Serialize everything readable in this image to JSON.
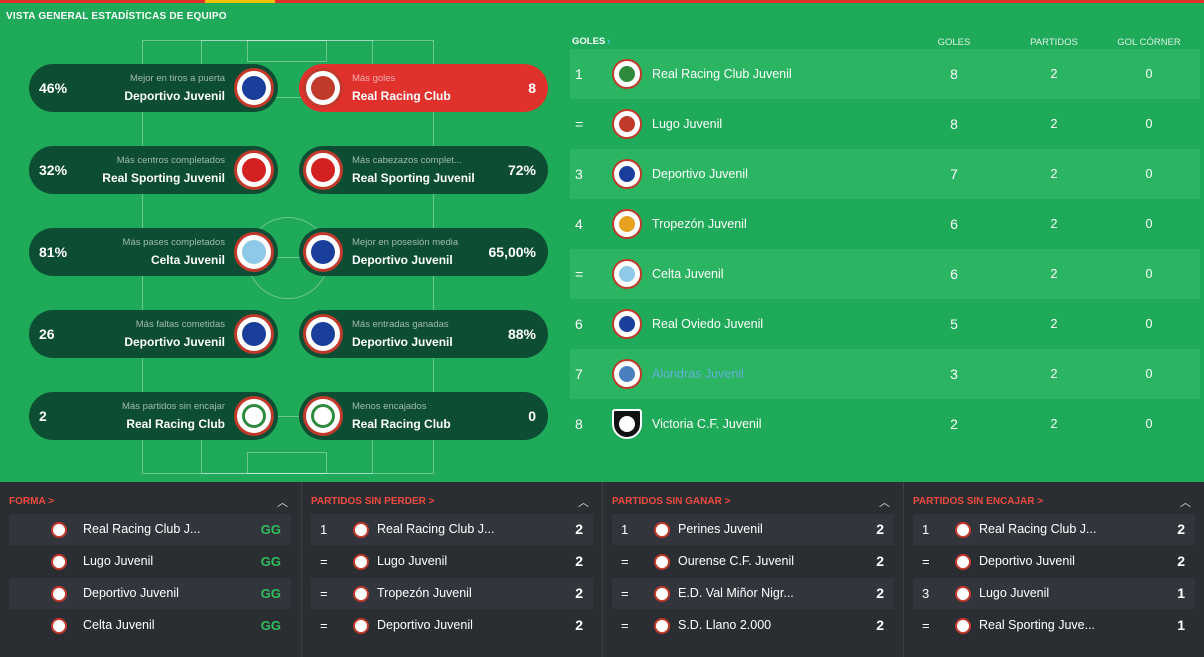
{
  "page": {
    "title": "VISTA GENERAL ESTADÍSTICAS DE EQUIPO"
  },
  "colors": {
    "green": "#1faa59",
    "dark_pill": "#0d4d33",
    "red": "#e0312d",
    "panel_bg": "#2a2e33",
    "form_green": "#2fbf5b"
  },
  "stats": {
    "left": [
      {
        "value": "46%",
        "label": "Mejor en tiros a puerta",
        "team": "Deportivo Juvenil",
        "crest": "#1a3e9b"
      },
      {
        "value": "32%",
        "label": "Más centros completados",
        "team": "Real Sporting Juvenil",
        "crest": "#d32020"
      },
      {
        "value": "81%",
        "label": "Más pases completados",
        "team": "Celta Juvenil",
        "crest": "#8fc9e8"
      },
      {
        "value": "26",
        "label": "Más faltas cometidas",
        "team": "Deportivo Juvenil",
        "crest": "#1a3e9b"
      },
      {
        "value": "2",
        "label": "Más partidos sin encajar",
        "team": "Real Racing Club",
        "crest": "#ffffff"
      }
    ],
    "right": [
      {
        "value": "8",
        "label": "Más goles",
        "team": "Real Racing Club",
        "crest": "#c0392b",
        "highlight": true
      },
      {
        "value": "72%",
        "label": "Más cabezazos complet...",
        "team": "Real Sporting Juvenil",
        "crest": "#d32020"
      },
      {
        "value": "65,00%",
        "label": "Mejor en posesión media",
        "team": "Deportivo Juvenil",
        "crest": "#1a3e9b"
      },
      {
        "value": "88%",
        "label": "Más entradas ganadas",
        "team": "Deportivo Juvenil",
        "crest": "#1a3e9b"
      },
      {
        "value": "0",
        "label": "Menos encajados",
        "team": "Real Racing Club",
        "crest": "#ffffff"
      }
    ]
  },
  "goals_table": {
    "title": "GOLES",
    "columns": {
      "goals": "GOLES",
      "played": "PARTIDOS",
      "corner": "GOL CÓRNER"
    },
    "rows": [
      {
        "pos": "1",
        "team": "Real Racing Club Juvenil",
        "goals": "8",
        "played": "2",
        "corner": "0",
        "crest": "#2e8b3d"
      },
      {
        "pos": "=",
        "team": "Lugo Juvenil",
        "goals": "8",
        "played": "2",
        "corner": "0",
        "crest": "#c0392b"
      },
      {
        "pos": "3",
        "team": "Deportivo Juvenil",
        "goals": "7",
        "played": "2",
        "corner": "0",
        "crest": "#1a3e9b"
      },
      {
        "pos": "4",
        "team": "Tropezón Juvenil",
        "goals": "6",
        "played": "2",
        "corner": "0",
        "crest": "#e8a020"
      },
      {
        "pos": "=",
        "team": "Celta Juvenil",
        "goals": "6",
        "played": "2",
        "corner": "0",
        "crest": "#8fc9e8"
      },
      {
        "pos": "6",
        "team": "Real Oviedo Juvenil",
        "goals": "5",
        "played": "2",
        "corner": "0",
        "crest": "#1a3e9b"
      },
      {
        "pos": "7",
        "team": "Alondras Juvenil",
        "goals": "3",
        "played": "2",
        "corner": "0",
        "crest": "#4a7fc0"
      },
      {
        "pos": "8",
        "team": "Victoria C.F. Juvenil",
        "goals": "2",
        "played": "2",
        "corner": "0",
        "crest": "#111111"
      }
    ]
  },
  "panels": [
    {
      "title": "FORMA >",
      "rows": [
        {
          "team": "Real Racing Club J...",
          "value": "GG"
        },
        {
          "team": "Lugo Juvenil",
          "value": "GG"
        },
        {
          "team": "Deportivo Juvenil",
          "value": "GG"
        },
        {
          "team": "Celta Juvenil",
          "value": "GG"
        }
      ]
    },
    {
      "title": "PARTIDOS SIN PERDER >",
      "rows": [
        {
          "pos": "1",
          "team": "Real Racing Club J...",
          "value": "2"
        },
        {
          "pos": "=",
          "team": "Lugo Juvenil",
          "value": "2"
        },
        {
          "pos": "=",
          "team": "Tropezón Juvenil",
          "value": "2"
        },
        {
          "pos": "=",
          "team": "Deportivo Juvenil",
          "value": "2"
        }
      ]
    },
    {
      "title": "PARTIDOS SIN GANAR >",
      "rows": [
        {
          "pos": "1",
          "team": "Perines Juvenil",
          "value": "2"
        },
        {
          "pos": "=",
          "team": "Ourense C.F. Juvenil",
          "value": "2"
        },
        {
          "pos": "=",
          "team": "E.D. Val Miñor Nigr...",
          "value": "2"
        },
        {
          "pos": "=",
          "team": "S.D. Llano 2.000",
          "value": "2"
        }
      ]
    },
    {
      "title": "PARTIDOS SIN ENCAJAR >",
      "rows": [
        {
          "pos": "1",
          "team": "Real Racing Club J...",
          "value": "2"
        },
        {
          "pos": "=",
          "team": "Deportivo Juvenil",
          "value": "2"
        },
        {
          "pos": "3",
          "team": "Lugo Juvenil",
          "value": "1"
        },
        {
          "pos": "=",
          "team": "Real Sporting Juve...",
          "value": "1"
        }
      ]
    }
  ],
  "icons": {
    "collapse": "chevron-up-icon",
    "link": "chevron-right-icon",
    "crest": "club-crest-icon"
  }
}
